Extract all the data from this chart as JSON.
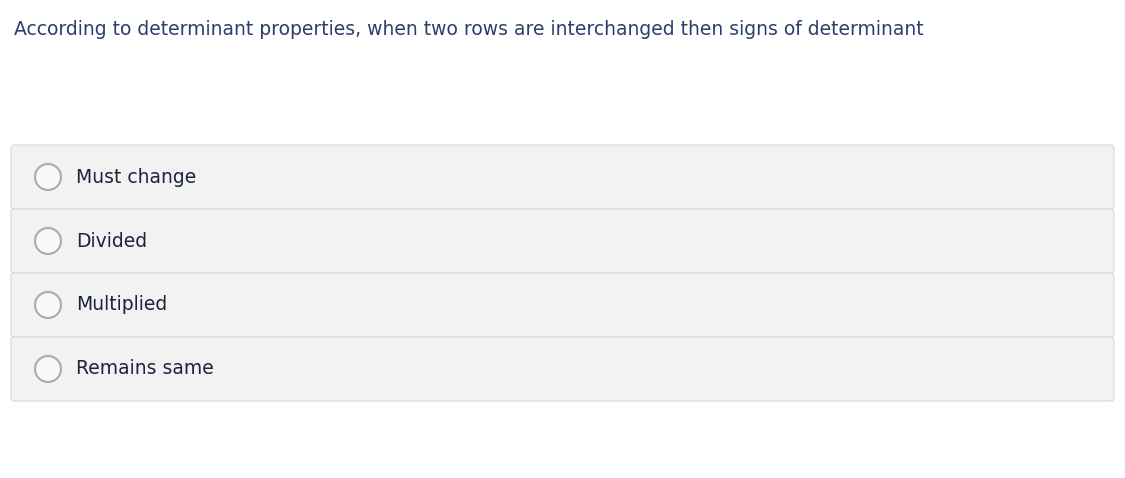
{
  "title": "According to determinant properties, when two rows are interchanged then signs of determinant",
  "title_color": "#2c3e6b",
  "title_fontsize": 13.5,
  "options": [
    "Must change",
    "Divided",
    "Multiplied",
    "Remains same"
  ],
  "option_fontsize": 13.5,
  "option_text_color": "#1a2340",
  "option_bg_color": "#f2f2f2",
  "option_border_color": "#d8d8d8",
  "radio_border_color": "#aaaaaa",
  "radio_fill_color": "#f8f8f8",
  "background_color": "#ffffff",
  "fig_width": 11.25,
  "fig_height": 4.78,
  "dpi": 100
}
